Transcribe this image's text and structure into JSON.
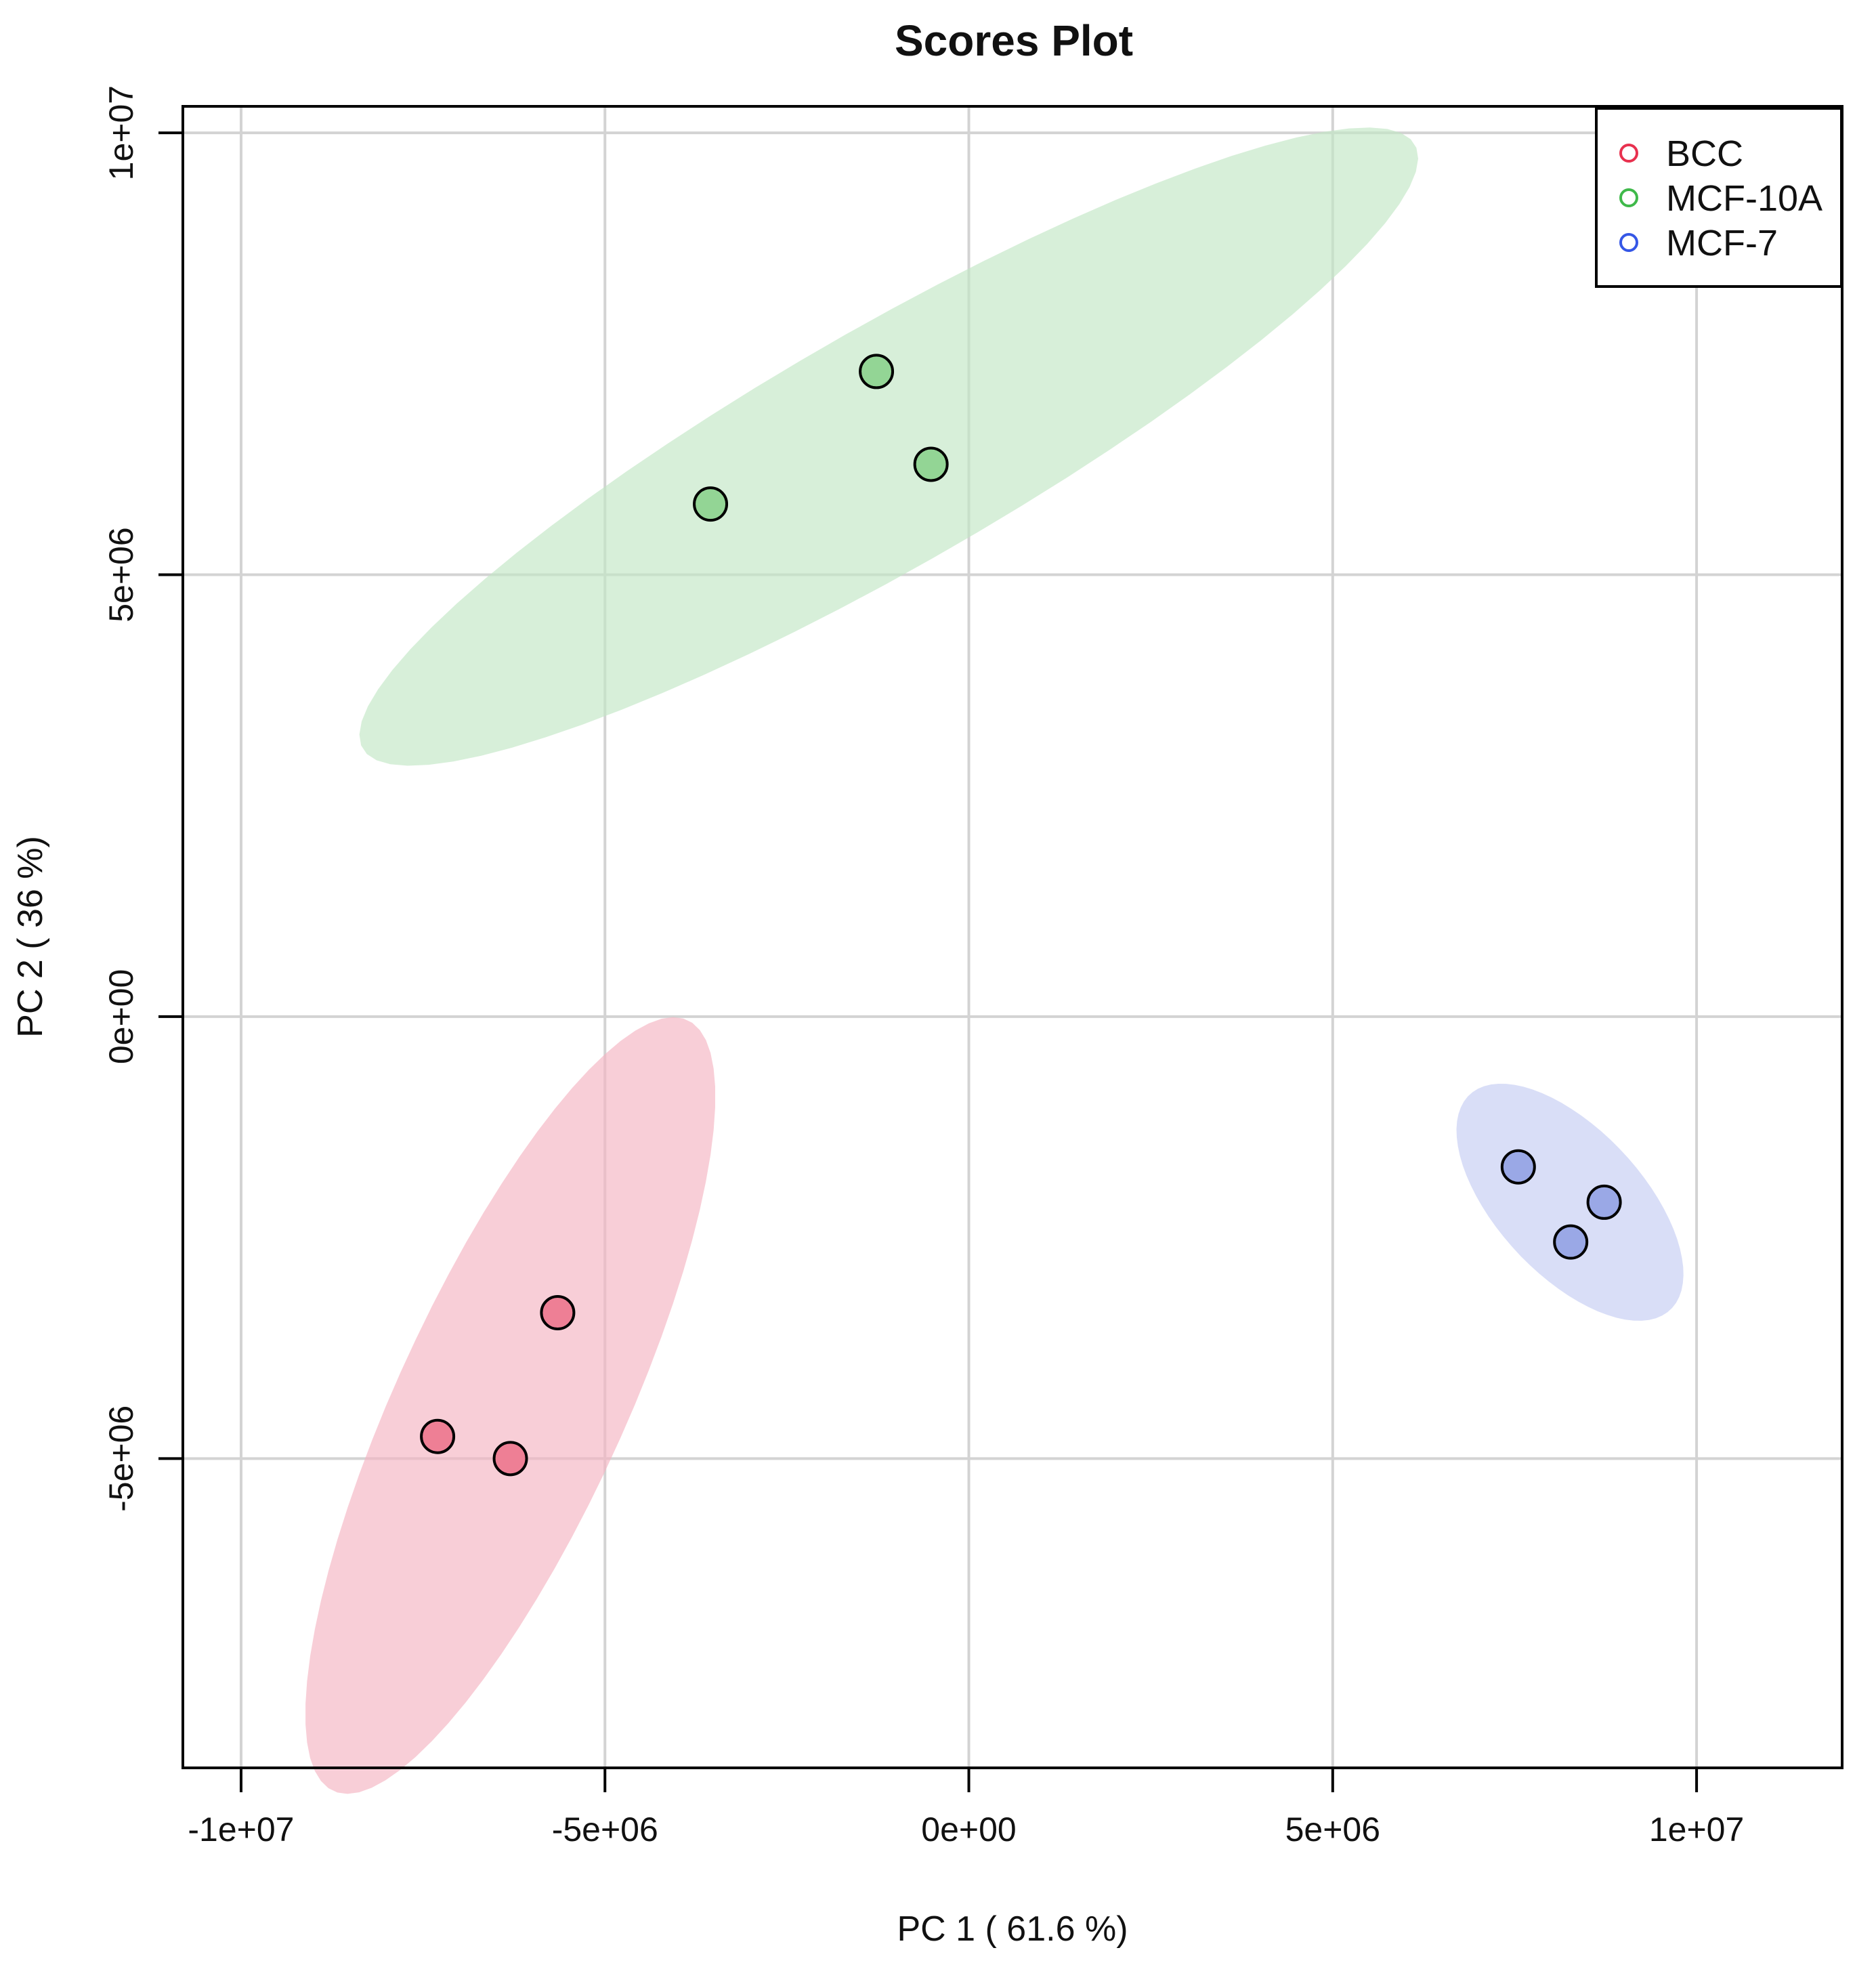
{
  "chart_data": {
    "type": "scatter",
    "title": "Scores Plot",
    "xlabel": "PC 1 ( 61.6 %)",
    "ylabel": "PC 2 ( 36 %)",
    "xlim": [
      -10800000,
      12000000
    ],
    "ylim": [
      -8500000,
      10300000
    ],
    "grid": true,
    "legend_position": "top-right",
    "x_ticks": [
      {
        "value": -10000000,
        "label": "-1e+07"
      },
      {
        "value": -5000000,
        "label": "-5e+06"
      },
      {
        "value": 0,
        "label": "0e+00"
      },
      {
        "value": 5000000,
        "label": "5e+06"
      },
      {
        "value": 10000000,
        "label": "1e+07"
      }
    ],
    "y_ticks": [
      {
        "value": -5000000,
        "label": "-5e+06"
      },
      {
        "value": 0,
        "label": "0e+00"
      },
      {
        "value": 5000000,
        "label": "5e+06"
      },
      {
        "value": 10000000,
        "label": "1e+07"
      }
    ],
    "series": [
      {
        "name": "BCC",
        "color": "#e8314f",
        "fill": "#ee7f95",
        "ellipse_fill": "#f4b4c1",
        "ellipse": {
          "cx": -6300000,
          "cy": -4400000,
          "a": 5000000,
          "b": 1500000,
          "angle_deg": 60
        },
        "points": [
          [
            -7300000,
            -4750000
          ],
          [
            -6300000,
            -5000000
          ],
          [
            -5650000,
            -3350000
          ]
        ]
      },
      {
        "name": "MCF-10A",
        "color": "#3fb94a",
        "fill": "#93d595",
        "ellipse_fill": "#c2e7c4",
        "ellipse": {
          "cx": -1100000,
          "cy": 6450000,
          "a": 8000000,
          "b": 1400000,
          "angle_deg": 25
        },
        "points": [
          [
            -3550000,
            5800000
          ],
          [
            -1270000,
            7300000
          ],
          [
            -520000,
            6250000
          ]
        ]
      },
      {
        "name": "MCF-7",
        "color": "#3557e6",
        "fill": "#9aa8e6",
        "ellipse_fill": "#c5cdf2",
        "ellipse": {
          "cx": 8260000,
          "cy": -2100000,
          "a": 1850000,
          "b": 900000,
          "angle_deg": -38
        },
        "points": [
          [
            7550000,
            -1700000
          ],
          [
            8270000,
            -2550000
          ],
          [
            8730000,
            -2100000
          ]
        ]
      }
    ]
  }
}
